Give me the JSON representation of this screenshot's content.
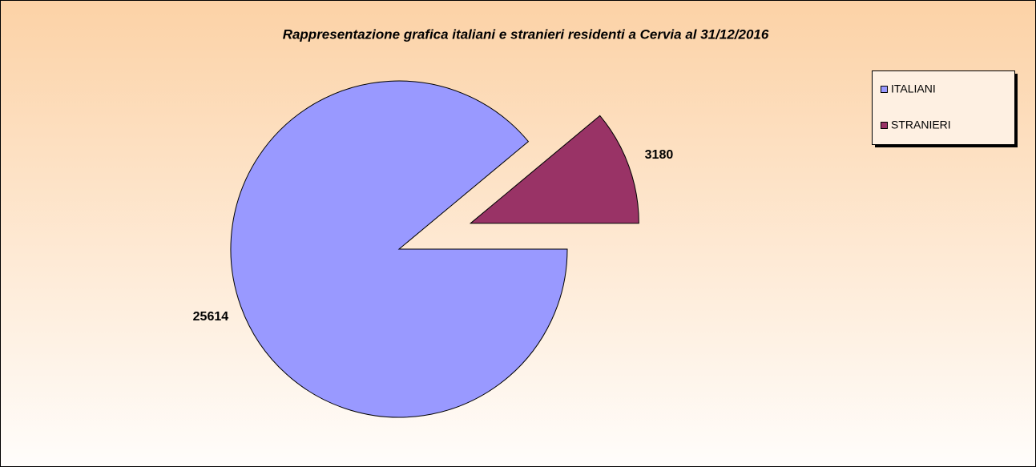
{
  "chart_data": {
    "type": "pie",
    "title": "Rappresentazione grafica italiani e stranieri residenti a Cervia al 31/12/2016",
    "categories": [
      "ITALIANI",
      "STRANIERI"
    ],
    "values": [
      25614,
      3180
    ],
    "colors": [
      "#9999ff",
      "#993366"
    ],
    "explode": [
      false,
      true
    ],
    "legend": "top-right"
  }
}
